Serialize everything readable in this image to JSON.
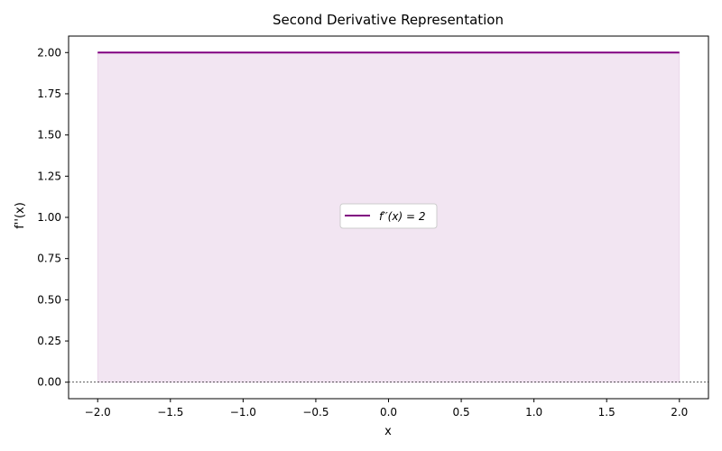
{
  "chart_data": {
    "type": "area",
    "title": "Second Derivative Representation",
    "xlabel": "x",
    "ylabel": "f''(x)",
    "xlim": [
      -2.2,
      2.2
    ],
    "ylim": [
      -0.1,
      2.1
    ],
    "xticks": [
      -2.0,
      -1.5,
      -1.0,
      -0.5,
      0.0,
      0.5,
      1.0,
      1.5,
      2.0
    ],
    "xtick_labels": [
      "−2.0",
      "−1.5",
      "−1.0",
      "−0.5",
      "0.0",
      "0.5",
      "1.0",
      "1.5",
      "2.0"
    ],
    "yticks": [
      0.0,
      0.25,
      0.5,
      0.75,
      1.0,
      1.25,
      1.5,
      1.75,
      2.0
    ],
    "ytick_labels": [
      "0.00",
      "0.25",
      "0.50",
      "0.75",
      "1.00",
      "1.25",
      "1.50",
      "1.75",
      "2.00"
    ],
    "series": [
      {
        "name": "f′′(x) = 2",
        "x": [
          -2.0,
          2.0
        ],
        "y": [
          2.0,
          2.0
        ],
        "color": "#800080",
        "fill_to": 0,
        "fill_color": "#800080",
        "fill_alpha": 0.1
      }
    ],
    "reference_line": {
      "y": 0,
      "style": "dashed",
      "color": "#000000"
    },
    "legend_position": "center",
    "grid": false
  }
}
